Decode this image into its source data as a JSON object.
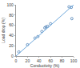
{
  "chart_data": {
    "type": "scatter",
    "x_label": "Conductivity (%)",
    "y_label": "Load drop (%)",
    "xlim": [
      0,
      100
    ],
    "ylim": [
      0,
      100
    ],
    "xticks": [
      0,
      20,
      40,
      60,
      80,
      100
    ],
    "yticks": [
      0,
      20,
      40,
      60,
      80,
      100
    ],
    "grid": false,
    "series": [
      {
        "type": "scatter",
        "color": "#4a7fb5",
        "marker": "circle-open",
        "x": [
          5,
          20,
          33,
          38,
          45,
          50,
          52,
          55,
          60,
          92,
          96,
          97
        ],
        "values": [
          8,
          22,
          35,
          38,
          48,
          55,
          57,
          58,
          63,
          96,
          95,
          73
        ]
      },
      {
        "type": "line",
        "color": "#6fa8dc",
        "line_style": "solid",
        "x": [
          0,
          100
        ],
        "values": [
          0,
          100
        ]
      }
    ]
  }
}
